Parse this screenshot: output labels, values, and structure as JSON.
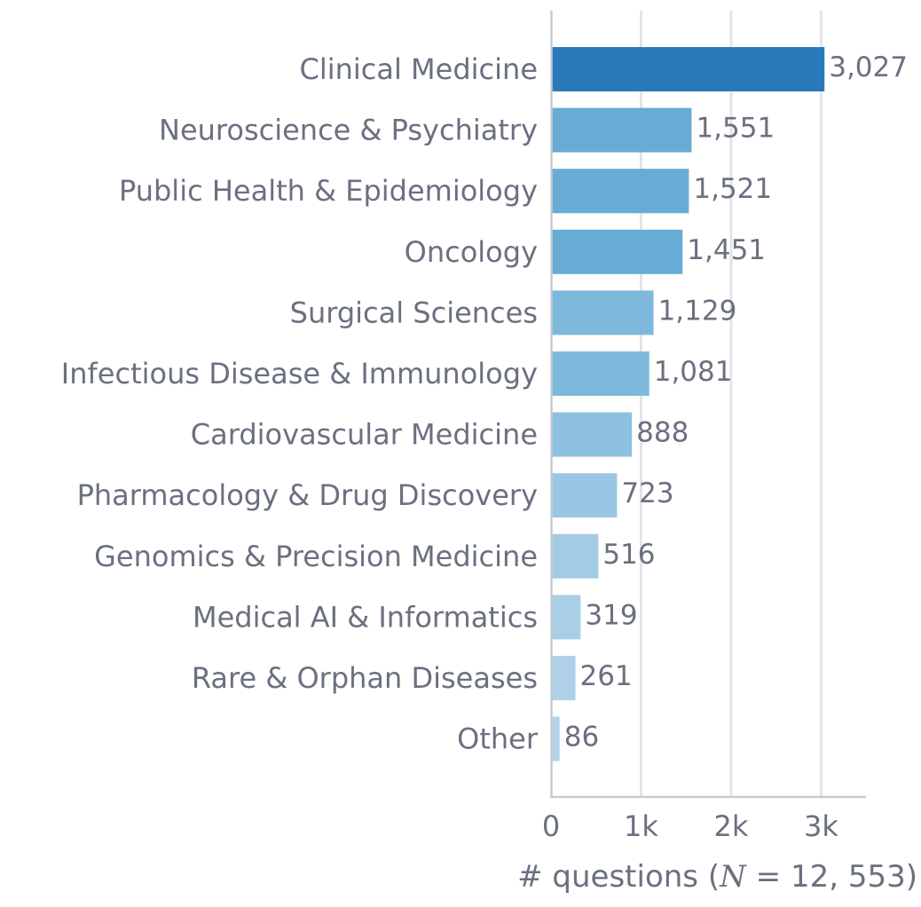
{
  "chart_data": {
    "type": "bar",
    "orientation": "horizontal",
    "categories": [
      "Clinical Medicine",
      "Neuroscience & Psychiatry",
      "Public Health & Epidemiology",
      "Oncology",
      "Surgical Sciences",
      "Infectious Disease & Immunology",
      "Cardiovascular Medicine",
      "Pharmacology & Drug Discovery",
      "Genomics & Precision Medicine",
      "Medical AI & Informatics",
      "Rare & Orphan Diseases",
      "Other"
    ],
    "values": [
      3027,
      1551,
      1521,
      1451,
      1129,
      1081,
      888,
      723,
      516,
      319,
      261,
      86
    ],
    "value_labels": [
      "3,027",
      "1,551",
      "1,521",
      "1,451",
      "1,129",
      "1,081",
      "888",
      "723",
      "516",
      "319",
      "261",
      "86"
    ],
    "colors": [
      "#2a7ab9",
      "#66acd5",
      "#66acd5",
      "#66acd5",
      "#7db9dc",
      "#7db9dc",
      "#8dc0df",
      "#99c7e3",
      "#a4cbe4",
      "#a9cfe6",
      "#aed1e8",
      "#b4d4e9"
    ],
    "xlim": [
      0,
      3500
    ],
    "xticks": [
      0,
      1000,
      2000,
      3000
    ],
    "xtick_labels": [
      "0",
      "1k",
      "2k",
      "3k"
    ],
    "xlabel": "# questions (N = 12, 553)",
    "xlabel_parts": {
      "prefix": "# questions (",
      "var": "N",
      "suffix": " = 12, 553)"
    },
    "grid": "vertical",
    "title": ""
  }
}
